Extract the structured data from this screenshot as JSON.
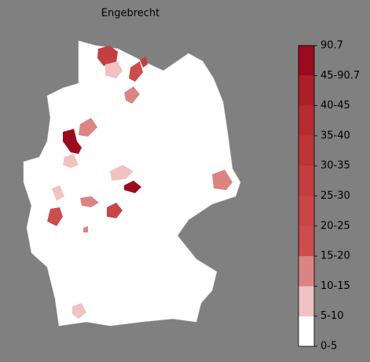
{
  "title": "Engebrecht",
  "legend": {
    "ticks": [
      "0-5",
      "5-10",
      "10-15",
      "15-20",
      "20-25",
      "25-30",
      "30-35",
      "35-40",
      "40-45",
      "45-90.7",
      "90.7"
    ],
    "colors": [
      "#ffffff",
      "#f0c2c2",
      "#dc8484",
      "#cd4c4c",
      "#c84646",
      "#c33e3e",
      "#bd3535",
      "#b62b2e",
      "#ad1f27",
      "#9b0a1e"
    ]
  }
}
